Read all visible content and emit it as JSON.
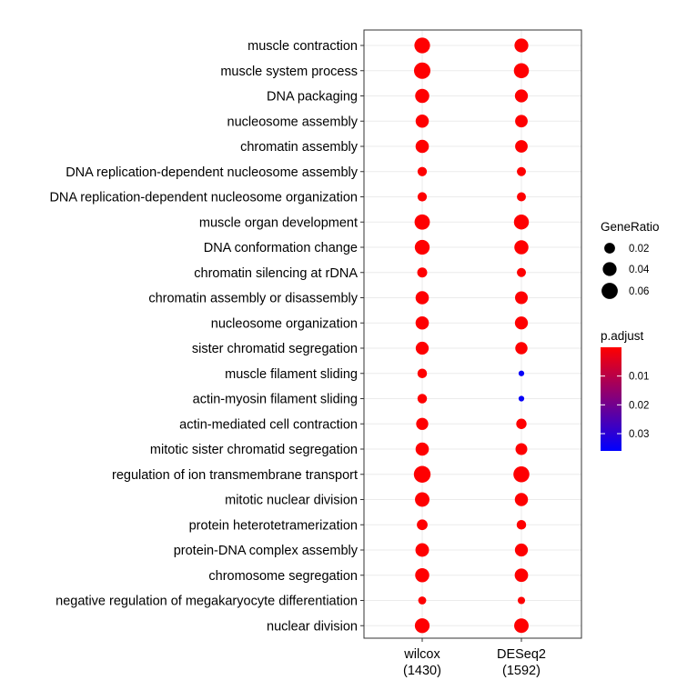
{
  "chart_data": {
    "type": "scatter",
    "title": "",
    "xlabel": "",
    "ylabel": "",
    "x_categories": [
      {
        "line1": "wilcox",
        "line2": "(1430)"
      },
      {
        "line1": "DESeq2",
        "line2": "(1592)"
      }
    ],
    "y_categories": [
      "muscle contraction",
      "muscle system process",
      "DNA packaging",
      "nucleosome assembly",
      "chromatin assembly",
      "DNA replication-dependent nucleosome assembly",
      "DNA replication-dependent nucleosome organization",
      "muscle organ development",
      "DNA conformation change",
      "chromatin silencing at rDNA",
      "chromatin assembly or disassembly",
      "nucleosome organization",
      "sister chromatid segregation",
      "muscle filament sliding",
      "actin-myosin filament sliding",
      "actin-mediated cell contraction",
      "mitotic sister chromatid segregation",
      "regulation of ion transmembrane transport",
      "mitotic nuclear division",
      "protein heterotetramerization",
      "protein-DNA complex assembly",
      "chromosome segregation",
      "negative regulation of megakaryocyte differentiation",
      "nuclear division"
    ],
    "series": [
      {
        "name": "wilcox (1430)",
        "gene_ratio": [
          0.055,
          0.062,
          0.042,
          0.035,
          0.036,
          0.013,
          0.013,
          0.052,
          0.048,
          0.016,
          0.036,
          0.036,
          0.034,
          0.014,
          0.014,
          0.028,
          0.036,
          0.065,
          0.045,
          0.02,
          0.038,
          0.042,
          0.008,
          0.047
        ],
        "p_adjust": [
          0.0001,
          0.0001,
          0.0001,
          0.0001,
          0.0001,
          0.0001,
          0.0001,
          0.0001,
          0.0001,
          0.0001,
          0.0001,
          0.0001,
          0.0001,
          0.0001,
          0.0001,
          0.0001,
          0.0001,
          0.0001,
          0.0001,
          0.0001,
          0.0001,
          0.0001,
          0.0002,
          0.0001
        ]
      },
      {
        "name": "DESeq2 (1592)",
        "gene_ratio": [
          0.04,
          0.05,
          0.034,
          0.031,
          0.031,
          0.012,
          0.012,
          0.049,
          0.042,
          0.012,
          0.032,
          0.034,
          0.029,
          0.002,
          0.002,
          0.018,
          0.026,
          0.058,
          0.035,
          0.014,
          0.034,
          0.037,
          0.006,
          0.045
        ],
        "p_adjust": [
          0.0001,
          0.0001,
          0.0001,
          0.0001,
          0.0001,
          0.0001,
          0.0001,
          0.0001,
          0.0001,
          0.0001,
          0.0001,
          0.0001,
          0.0001,
          0.035,
          0.035,
          0.0001,
          0.0001,
          0.0001,
          0.0001,
          0.0001,
          0.0001,
          0.0001,
          0.0003,
          0.0001
        ]
      }
    ],
    "size_legend": {
      "title": "GeneRatio",
      "values": [
        0.02,
        0.04,
        0.06
      ],
      "labels": [
        "0.02",
        "0.04",
        "0.06"
      ]
    },
    "color_legend": {
      "title": "p.adjust",
      "labels": [
        "0.01",
        "0.02",
        "0.03"
      ],
      "values": [
        0.01,
        0.02,
        0.03
      ],
      "range": [
        0.0,
        0.036
      ],
      "low_color": "#ff0000",
      "high_color": "#0000ff"
    },
    "grid": true,
    "legend_position": "right"
  }
}
